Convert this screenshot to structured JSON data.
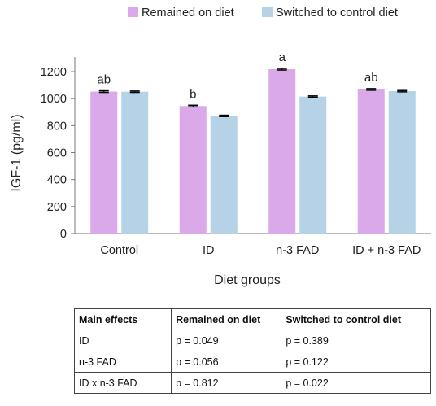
{
  "chart_data": {
    "type": "bar",
    "categories": [
      "Control",
      "ID",
      "n-3 FAD",
      "ID + n-3 FAD"
    ],
    "series": [
      {
        "name": "Remained on diet",
        "color": "#d9a9ea",
        "values": [
          1052,
          945,
          1218,
          1068
        ],
        "errors": [
          6,
          6,
          6,
          6
        ]
      },
      {
        "name": "Switched to control diet",
        "color": "#b5d2e6",
        "values": [
          1051,
          872,
          1015,
          1055
        ],
        "errors": [
          5,
          5,
          5,
          5
        ]
      }
    ],
    "significance_labels": [
      "ab",
      "b",
      "a",
      "ab"
    ],
    "ylabel": "IGF-1 (pg/ml)",
    "xlabel": "Diet groups",
    "ylim": [
      0,
      1200
    ],
    "yticks": [
      0,
      200,
      400,
      600,
      800,
      1000,
      1200
    ],
    "grid": false,
    "legend_position": "top"
  },
  "table": {
    "headers": [
      "Main effects",
      "Remained on diet",
      "Switched to control diet"
    ],
    "rows": [
      [
        "ID",
        "p = 0.049",
        "p = 0.389"
      ],
      [
        "n-3 FAD",
        "p = 0.056",
        "p = 0.122"
      ],
      [
        "ID x n-3 FAD",
        "p = 0.812",
        "p = 0.022"
      ]
    ]
  }
}
